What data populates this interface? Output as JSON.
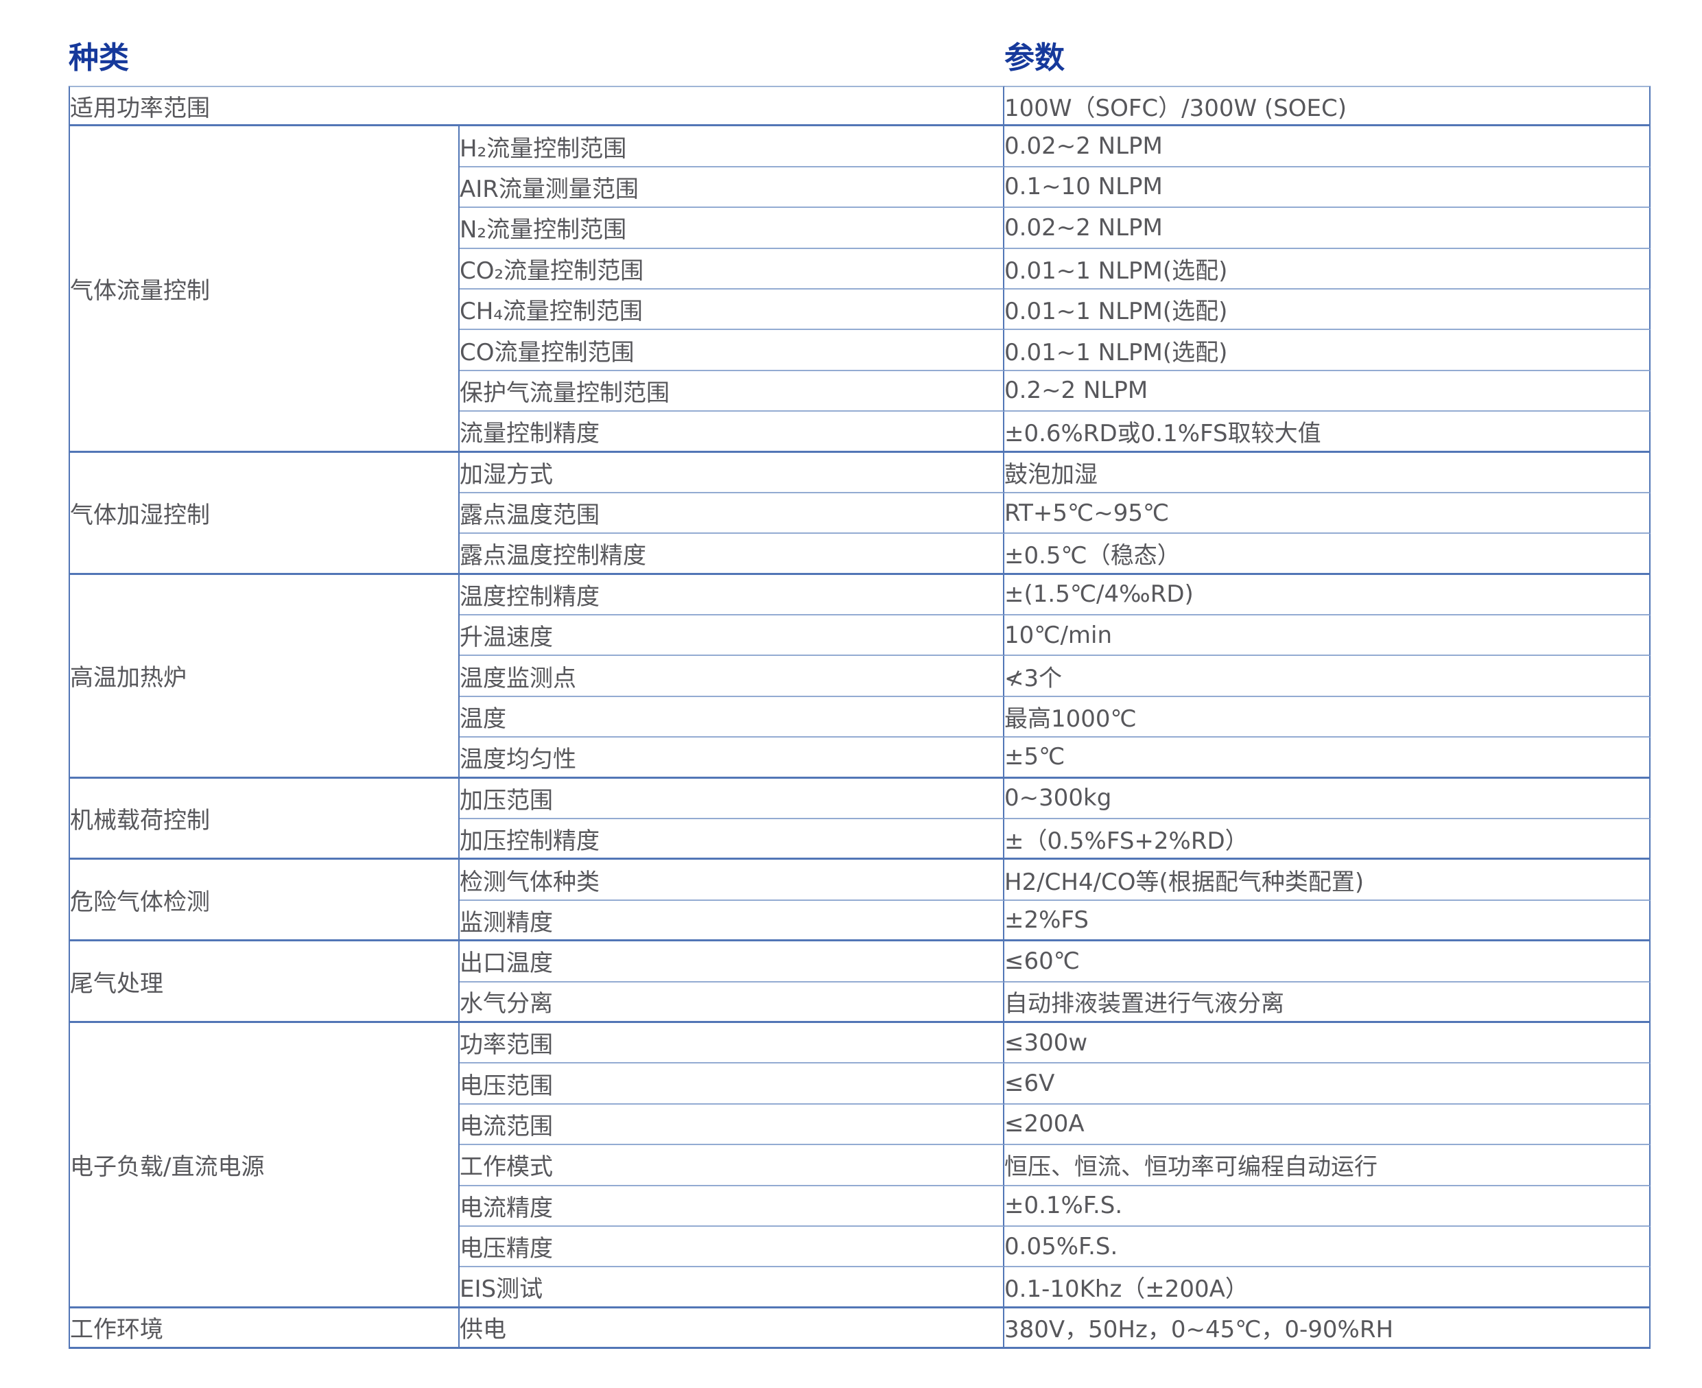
{
  "header": {
    "col1": "种类",
    "col2": "参数"
  },
  "power_row": {
    "label": "适用功率范围",
    "value": "100W（SOFC）/300W (SOEC)"
  },
  "groups": [
    {
      "category": "气体流量控制",
      "rows": [
        {
          "param": "H₂流量控制范围",
          "value": "0.02~2 NLPM"
        },
        {
          "param": "AIR流量测量范围",
          "value": "0.1~10 NLPM"
        },
        {
          "param": "N₂流量控制范围",
          "value": "0.02~2 NLPM"
        },
        {
          "param": "CO₂流量控制范围",
          "value": "0.01~1 NLPM(选配)"
        },
        {
          "param": "CH₄流量控制范围",
          "value": "0.01~1 NLPM(选配)"
        },
        {
          "param": "CO流量控制范围",
          "value": "0.01~1 NLPM(选配)"
        },
        {
          "param": "保护气流量控制范围",
          "value": "0.2~2 NLPM"
        },
        {
          "param": "流量控制精度",
          "value": "±0.6%RD或0.1%FS取较大值"
        }
      ]
    },
    {
      "category": "气体加湿控制",
      "rows": [
        {
          "param": "加湿方式",
          "value": "鼓泡加湿"
        },
        {
          "param": "露点温度范围",
          "value": "RT+5℃~95℃"
        },
        {
          "param": "露点温度控制精度",
          "value": "±0.5℃（稳态）"
        }
      ]
    },
    {
      "category": "高温加热炉",
      "rows": [
        {
          "param": "温度控制精度",
          "value": "±(1.5℃/4‰RD)"
        },
        {
          "param": "升温速度",
          "value": "10℃/min"
        },
        {
          "param": "温度监测点",
          "value": "≮3个"
        },
        {
          "param": "温度",
          "value": "最高1000℃"
        },
        {
          "param": "温度均匀性",
          "value": "±5℃"
        }
      ]
    },
    {
      "category": "机械载荷控制",
      "rows": [
        {
          "param": "加压范围",
          "value": "0~300kg"
        },
        {
          "param": "加压控制精度",
          "value": "±（0.5%FS+2%RD）"
        }
      ]
    },
    {
      "category": "危险气体检测",
      "rows": [
        {
          "param": "检测气体种类",
          "value": "H2/CH4/CO等(根据配气种类配置)"
        },
        {
          "param": "监测精度",
          "value": "±2%FS"
        }
      ]
    },
    {
      "category": "尾气处理",
      "rows": [
        {
          "param": "出口温度",
          "value": "≤60℃"
        },
        {
          "param": "水气分离",
          "value": "自动排液装置进行气液分离"
        }
      ]
    },
    {
      "category": "电子负载/直流电源",
      "rows": [
        {
          "param": "功率范围",
          "value": "≤300w"
        },
        {
          "param": "电压范围",
          "value": "≤6V"
        },
        {
          "param": "电流范围",
          "value": "≤200A"
        },
        {
          "param": "工作模式",
          "value": "恒压、恒流、恒功率可编程自动运行"
        },
        {
          "param": "电流精度",
          "value": "±0.1%F.S."
        },
        {
          "param": "电压精度",
          "value": "0.05%F.S."
        },
        {
          "param": "EIS测试",
          "value": "0.1-10Khz（±200A）"
        }
      ]
    },
    {
      "category": "工作环境",
      "rows": [
        {
          "param": "供电",
          "value": "380V，50Hz，0~45℃，0-90%RH"
        }
      ]
    }
  ],
  "colors": {
    "header_text": "#16399b",
    "body_text": "#57575b",
    "thin_line": "#93abd2",
    "thick_line": "#5276b6",
    "header_gradient_left_start": "#f0f7fc",
    "header_gradient_left_end": "#cbe6e2",
    "header_gradient_right_start": "#cce7dc",
    "header_gradient_right_end": "#b6d8a3"
  }
}
